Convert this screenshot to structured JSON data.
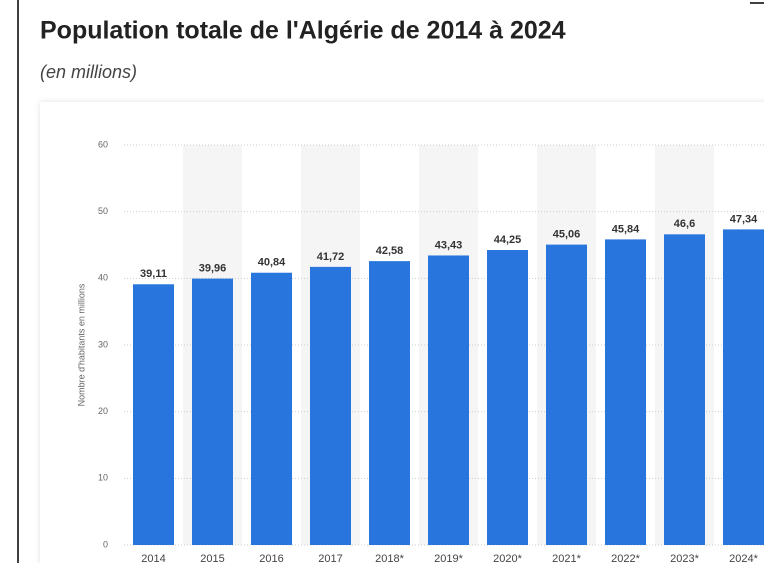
{
  "chart_data": {
    "type": "bar",
    "title": "Population totale de l'Algérie de 2014 à 2024",
    "subtitle": "(en millions)",
    "y_label": "Nombre d'habitants en millions",
    "categories": [
      "2014",
      "2015",
      "2016",
      "2017",
      "2018*",
      "2019*",
      "2020*",
      "2021*",
      "2022*",
      "2023*",
      "2024*"
    ],
    "values": [
      39.11,
      39.96,
      40.84,
      41.72,
      42.58,
      43.43,
      44.25,
      45.06,
      45.84,
      46.6,
      47.34
    ],
    "value_labels": [
      "39,11",
      "39,96",
      "40,84",
      "41,72",
      "42,58",
      "43,43",
      "44,25",
      "45,06",
      "45,84",
      "46,6",
      "47,34"
    ],
    "color": "#2876dd",
    "ylim": [
      0,
      60
    ],
    "yticks": [
      0,
      10,
      20,
      30,
      40,
      50,
      60
    ],
    "grid": true
  }
}
